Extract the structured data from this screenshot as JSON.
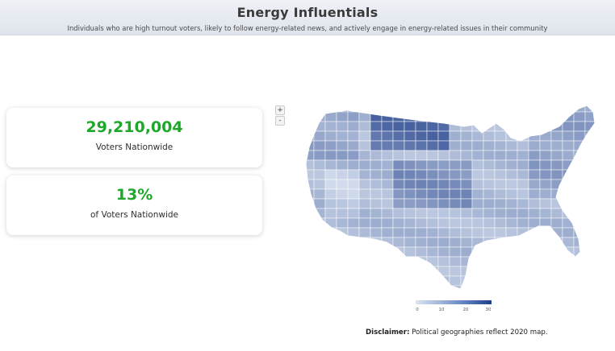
{
  "header": {
    "title": "Energy Influentials",
    "subtitle": "Individuals who are high turnout voters, likely to follow energy-related news, and actively engage in energy-related issues in their community"
  },
  "stats": [
    {
      "value": "29,210,004",
      "label": "Voters Nationwide"
    },
    {
      "value": "13%",
      "label": "of Voters Nationwide"
    }
  ],
  "map": {
    "zoom_in_label": "+",
    "zoom_out_label": "-",
    "legend": {
      "ticks": [
        "0",
        "10",
        "20",
        "30"
      ],
      "range": [
        0,
        30
      ],
      "colors": [
        "#dbe4f1",
        "#9fb4d8",
        "#5b7fbf",
        "#1e3d8a"
      ]
    }
  },
  "disclaimer": {
    "label": "Disclaimer:",
    "text": " Political geographies reflect 2020 map."
  },
  "colors": {
    "accent_green": "#1ea82a",
    "header_bg": "#e4e8ef"
  }
}
